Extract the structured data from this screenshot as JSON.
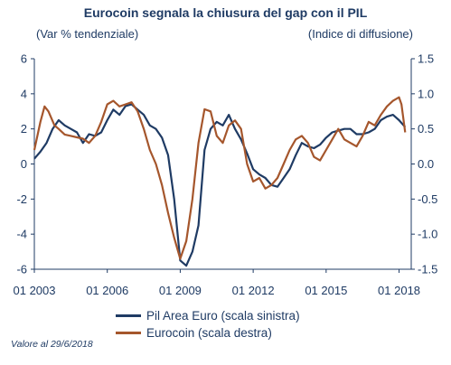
{
  "chart_data": {
    "type": "line",
    "title": "Eurocoin segnala la chiusura del gap con il PIL",
    "left_axis_label": "(Var % tendenziale)",
    "right_axis_label": "(Indice di diffusione)",
    "x_ticks": [
      "01 2003",
      "01 2006",
      "01 2009",
      "01 2012",
      "01 2015",
      "01 2018"
    ],
    "y_left_ticks": [
      "6",
      "4",
      "2",
      "0",
      "-2",
      "-4",
      "-6"
    ],
    "y_right_ticks": [
      "1.5",
      "1.0",
      "0.5",
      "0.0",
      "-0.5",
      "-1.0",
      "-1.5"
    ],
    "ylim_left": [
      -6,
      6
    ],
    "ylim_right": [
      -1.5,
      1.5
    ],
    "xlim": [
      2003.0,
      2018.5
    ],
    "grid": false,
    "legend_position": "bottom",
    "series": [
      {
        "name": "Pil Area Euro (scala sinistra)",
        "axis": "left",
        "color": "#1f3b64",
        "points": [
          [
            2003.0,
            0.3
          ],
          [
            2003.25,
            0.7
          ],
          [
            2003.5,
            1.2
          ],
          [
            2003.75,
            2.0
          ],
          [
            2004.0,
            2.5
          ],
          [
            2004.25,
            2.2
          ],
          [
            2004.5,
            2.0
          ],
          [
            2004.75,
            1.8
          ],
          [
            2005.0,
            1.2
          ],
          [
            2005.25,
            1.7
          ],
          [
            2005.5,
            1.6
          ],
          [
            2005.75,
            1.8
          ],
          [
            2006.0,
            2.5
          ],
          [
            2006.25,
            3.1
          ],
          [
            2006.5,
            2.8
          ],
          [
            2006.75,
            3.3
          ],
          [
            2007.0,
            3.4
          ],
          [
            2007.25,
            3.1
          ],
          [
            2007.5,
            2.8
          ],
          [
            2007.75,
            2.2
          ],
          [
            2008.0,
            2.0
          ],
          [
            2008.25,
            1.5
          ],
          [
            2008.5,
            0.5
          ],
          [
            2008.75,
            -2.0
          ],
          [
            2009.0,
            -5.5
          ],
          [
            2009.25,
            -5.8
          ],
          [
            2009.5,
            -5.0
          ],
          [
            2009.75,
            -3.5
          ],
          [
            2010.0,
            0.8
          ],
          [
            2010.25,
            2.0
          ],
          [
            2010.5,
            2.4
          ],
          [
            2010.75,
            2.2
          ],
          [
            2011.0,
            2.8
          ],
          [
            2011.25,
            2.0
          ],
          [
            2011.5,
            1.4
          ],
          [
            2011.75,
            0.6
          ],
          [
            2012.0,
            -0.3
          ],
          [
            2012.25,
            -0.6
          ],
          [
            2012.5,
            -0.8
          ],
          [
            2012.75,
            -1.2
          ],
          [
            2013.0,
            -1.3
          ],
          [
            2013.25,
            -0.8
          ],
          [
            2013.5,
            -0.3
          ],
          [
            2013.75,
            0.5
          ],
          [
            2014.0,
            1.2
          ],
          [
            2014.25,
            1.0
          ],
          [
            2014.5,
            0.9
          ],
          [
            2014.75,
            1.1
          ],
          [
            2015.0,
            1.5
          ],
          [
            2015.25,
            1.8
          ],
          [
            2015.5,
            1.9
          ],
          [
            2015.75,
            2.0
          ],
          [
            2016.0,
            2.0
          ],
          [
            2016.25,
            1.7
          ],
          [
            2016.5,
            1.7
          ],
          [
            2016.75,
            1.8
          ],
          [
            2017.0,
            2.0
          ],
          [
            2017.25,
            2.5
          ],
          [
            2017.5,
            2.7
          ],
          [
            2017.75,
            2.8
          ],
          [
            2018.0,
            2.5
          ],
          [
            2018.25,
            2.1
          ]
        ]
      },
      {
        "name": "Eurocoin (scala destra)",
        "axis": "right",
        "color": "#a5562c",
        "points": [
          [
            2003.0,
            0.2
          ],
          [
            2003.25,
            0.6
          ],
          [
            2003.42,
            0.82
          ],
          [
            2003.58,
            0.75
          ],
          [
            2003.83,
            0.55
          ],
          [
            2004.0,
            0.5
          ],
          [
            2004.25,
            0.42
          ],
          [
            2004.5,
            0.4
          ],
          [
            2004.75,
            0.38
          ],
          [
            2005.0,
            0.36
          ],
          [
            2005.25,
            0.3
          ],
          [
            2005.5,
            0.4
          ],
          [
            2005.75,
            0.6
          ],
          [
            2006.0,
            0.85
          ],
          [
            2006.25,
            0.9
          ],
          [
            2006.5,
            0.82
          ],
          [
            2006.75,
            0.85
          ],
          [
            2007.0,
            0.88
          ],
          [
            2007.25,
            0.75
          ],
          [
            2007.5,
            0.5
          ],
          [
            2007.75,
            0.2
          ],
          [
            2008.0,
            0.0
          ],
          [
            2008.25,
            -0.3
          ],
          [
            2008.5,
            -0.7
          ],
          [
            2008.75,
            -1.05
          ],
          [
            2009.0,
            -1.35
          ],
          [
            2009.25,
            -1.1
          ],
          [
            2009.5,
            -0.5
          ],
          [
            2009.75,
            0.3
          ],
          [
            2010.0,
            0.78
          ],
          [
            2010.25,
            0.75
          ],
          [
            2010.5,
            0.4
          ],
          [
            2010.75,
            0.3
          ],
          [
            2011.0,
            0.55
          ],
          [
            2011.25,
            0.62
          ],
          [
            2011.5,
            0.5
          ],
          [
            2011.75,
            0.0
          ],
          [
            2012.0,
            -0.25
          ],
          [
            2012.25,
            -0.2
          ],
          [
            2012.5,
            -0.35
          ],
          [
            2012.75,
            -0.3
          ],
          [
            2013.0,
            -0.2
          ],
          [
            2013.25,
            0.0
          ],
          [
            2013.5,
            0.2
          ],
          [
            2013.75,
            0.35
          ],
          [
            2014.0,
            0.4
          ],
          [
            2014.25,
            0.3
          ],
          [
            2014.5,
            0.1
          ],
          [
            2014.75,
            0.05
          ],
          [
            2015.0,
            0.2
          ],
          [
            2015.25,
            0.35
          ],
          [
            2015.5,
            0.5
          ],
          [
            2015.75,
            0.35
          ],
          [
            2016.0,
            0.3
          ],
          [
            2016.25,
            0.25
          ],
          [
            2016.5,
            0.4
          ],
          [
            2016.75,
            0.6
          ],
          [
            2017.0,
            0.55
          ],
          [
            2017.25,
            0.7
          ],
          [
            2017.5,
            0.82
          ],
          [
            2017.75,
            0.9
          ],
          [
            2018.0,
            0.95
          ],
          [
            2018.1,
            0.85
          ],
          [
            2018.25,
            0.45
          ]
        ]
      }
    ]
  },
  "note": "Valore al 29/6/2018"
}
